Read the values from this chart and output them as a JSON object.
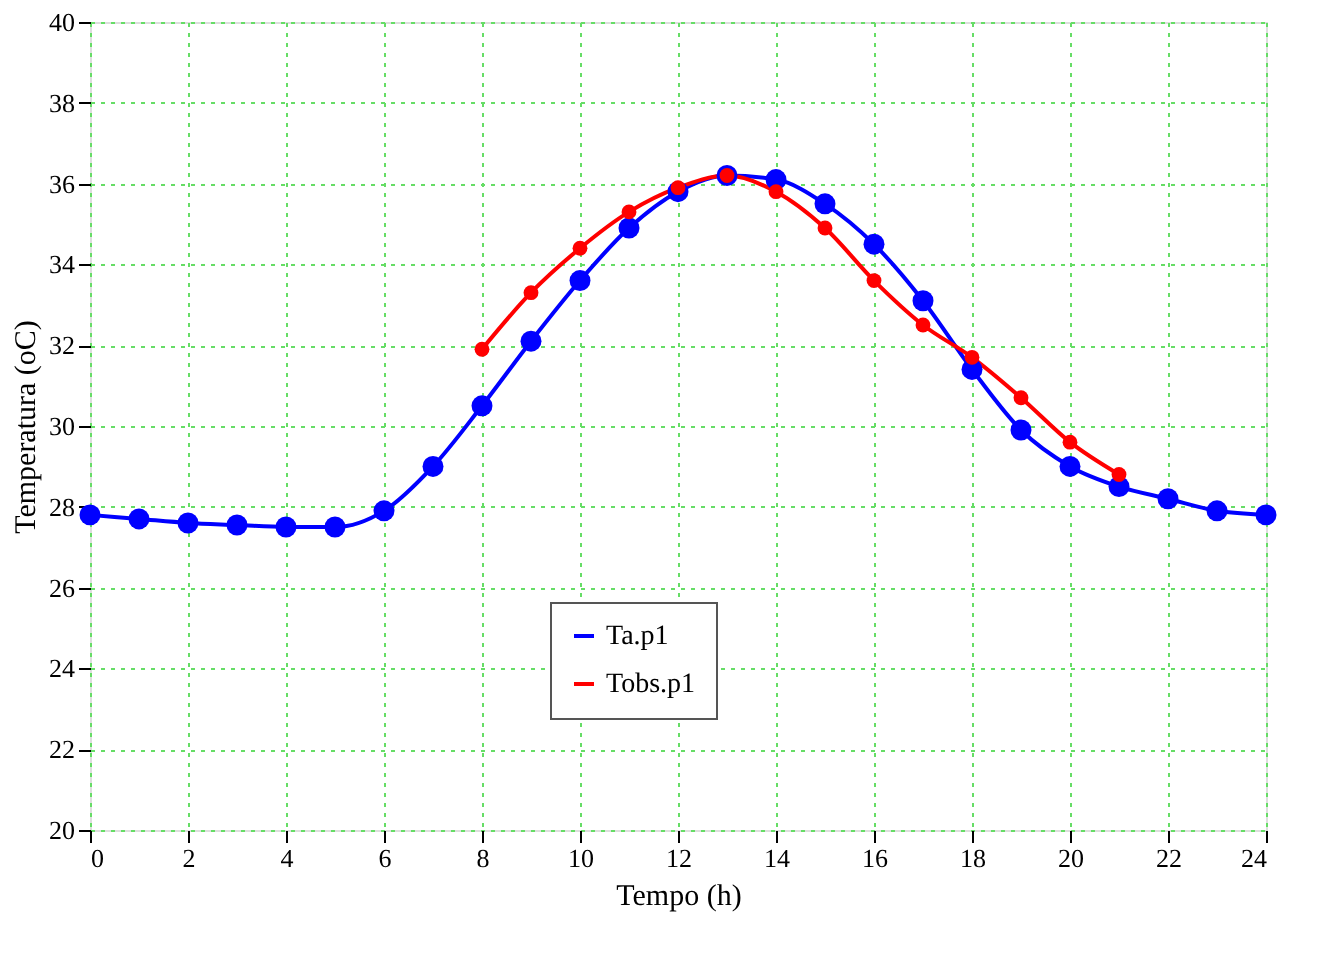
{
  "chart_data": {
    "type": "line",
    "xlabel": "Tempo (h)",
    "ylabel": "Temperatura (oC)",
    "xlim": [
      0,
      24
    ],
    "xticks": [
      0,
      2,
      4,
      6,
      8,
      10,
      12,
      14,
      16,
      18,
      20,
      22,
      24
    ],
    "ylim": [
      20,
      40
    ],
    "yticks": [
      20,
      22,
      24,
      26,
      28,
      30,
      32,
      34,
      36,
      38,
      40
    ],
    "grid": true,
    "legend": "bottom",
    "marker": "circle",
    "line_style": "solid",
    "series": [
      {
        "name": "Ta.p1",
        "color": "#0000ff",
        "x": [
          0,
          1,
          2,
          3,
          4,
          5,
          6,
          7,
          8,
          9,
          10,
          11,
          12,
          13,
          14,
          15,
          16,
          17,
          18,
          19,
          20,
          21,
          22,
          23,
          24
        ],
        "values": [
          27.8,
          27.7,
          27.6,
          27.55,
          27.5,
          27.5,
          27.9,
          29.0,
          30.5,
          32.1,
          33.6,
          34.9,
          35.8,
          36.2,
          36.1,
          35.5,
          34.5,
          33.1,
          31.4,
          29.9,
          29.0,
          28.5,
          28.2,
          27.9,
          27.8
        ]
      },
      {
        "name": "Tobs.p1",
        "color": "#ff0000",
        "x": [
          8,
          9,
          10,
          11,
          12,
          13,
          14,
          15,
          16,
          17,
          18,
          19,
          20,
          21
        ],
        "values": [
          31.9,
          33.3,
          34.4,
          35.3,
          35.9,
          36.2,
          35.8,
          34.9,
          33.6,
          32.5,
          31.7,
          30.7,
          29.6,
          28.8
        ]
      }
    ]
  }
}
